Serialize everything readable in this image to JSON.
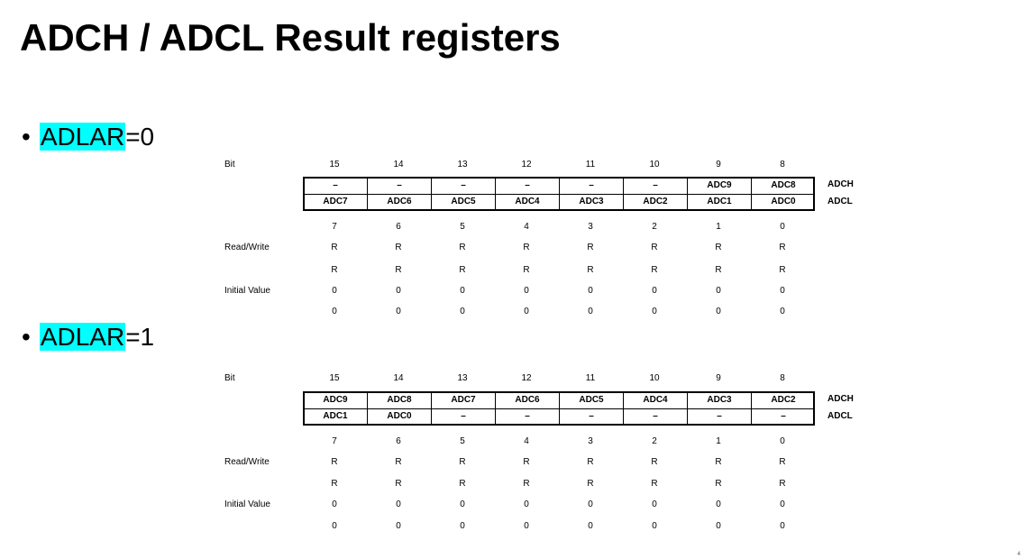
{
  "title": "ADCH / ADCL Result registers",
  "sections": [
    {
      "bullet": "•",
      "highlight": "ADLAR",
      "suffix": "=0",
      "labels": {
        "bit": "Bit",
        "rw": "Read/Write",
        "init": "Initial Value"
      },
      "high_bits": [
        "15",
        "14",
        "13",
        "12",
        "11",
        "10",
        "9",
        "8"
      ],
      "low_bits": [
        "7",
        "6",
        "5",
        "4",
        "3",
        "2",
        "1",
        "0"
      ],
      "adch_cells": [
        "–",
        "–",
        "–",
        "–",
        "–",
        "–",
        "ADC9",
        "ADC8"
      ],
      "adcl_cells": [
        "ADC7",
        "ADC6",
        "ADC5",
        "ADC4",
        "ADC3",
        "ADC2",
        "ADC1",
        "ADC0"
      ],
      "adch_name": "ADCH",
      "adcl_name": "ADCL",
      "rw_row1": [
        "R",
        "R",
        "R",
        "R",
        "R",
        "R",
        "R",
        "R"
      ],
      "rw_row2": [
        "R",
        "R",
        "R",
        "R",
        "R",
        "R",
        "R",
        "R"
      ],
      "init_row1": [
        "0",
        "0",
        "0",
        "0",
        "0",
        "0",
        "0",
        "0"
      ],
      "init_row2": [
        "0",
        "0",
        "0",
        "0",
        "0",
        "0",
        "0",
        "0"
      ]
    },
    {
      "bullet": "•",
      "highlight": "ADLAR",
      "suffix": "=1",
      "labels": {
        "bit": "Bit",
        "rw": "Read/Write",
        "init": "Initial Value"
      },
      "high_bits": [
        "15",
        "14",
        "13",
        "12",
        "11",
        "10",
        "9",
        "8"
      ],
      "low_bits": [
        "7",
        "6",
        "5",
        "4",
        "3",
        "2",
        "1",
        "0"
      ],
      "adch_cells": [
        "ADC9",
        "ADC8",
        "ADC7",
        "ADC6",
        "ADC5",
        "ADC4",
        "ADC3",
        "ADC2"
      ],
      "adcl_cells": [
        "ADC1",
        "ADC0",
        "–",
        "–",
        "–",
        "–",
        "–",
        "–"
      ],
      "adch_name": "ADCH",
      "adcl_name": "ADCL",
      "rw_row1": [
        "R",
        "R",
        "R",
        "R",
        "R",
        "R",
        "R",
        "R"
      ],
      "rw_row2": [
        "R",
        "R",
        "R",
        "R",
        "R",
        "R",
        "R",
        "R"
      ],
      "init_row1": [
        "0",
        "0",
        "0",
        "0",
        "0",
        "0",
        "0",
        "0"
      ],
      "init_row2": [
        "0",
        "0",
        "0",
        "0",
        "0",
        "0",
        "0",
        "0"
      ]
    }
  ],
  "page_number": "4"
}
